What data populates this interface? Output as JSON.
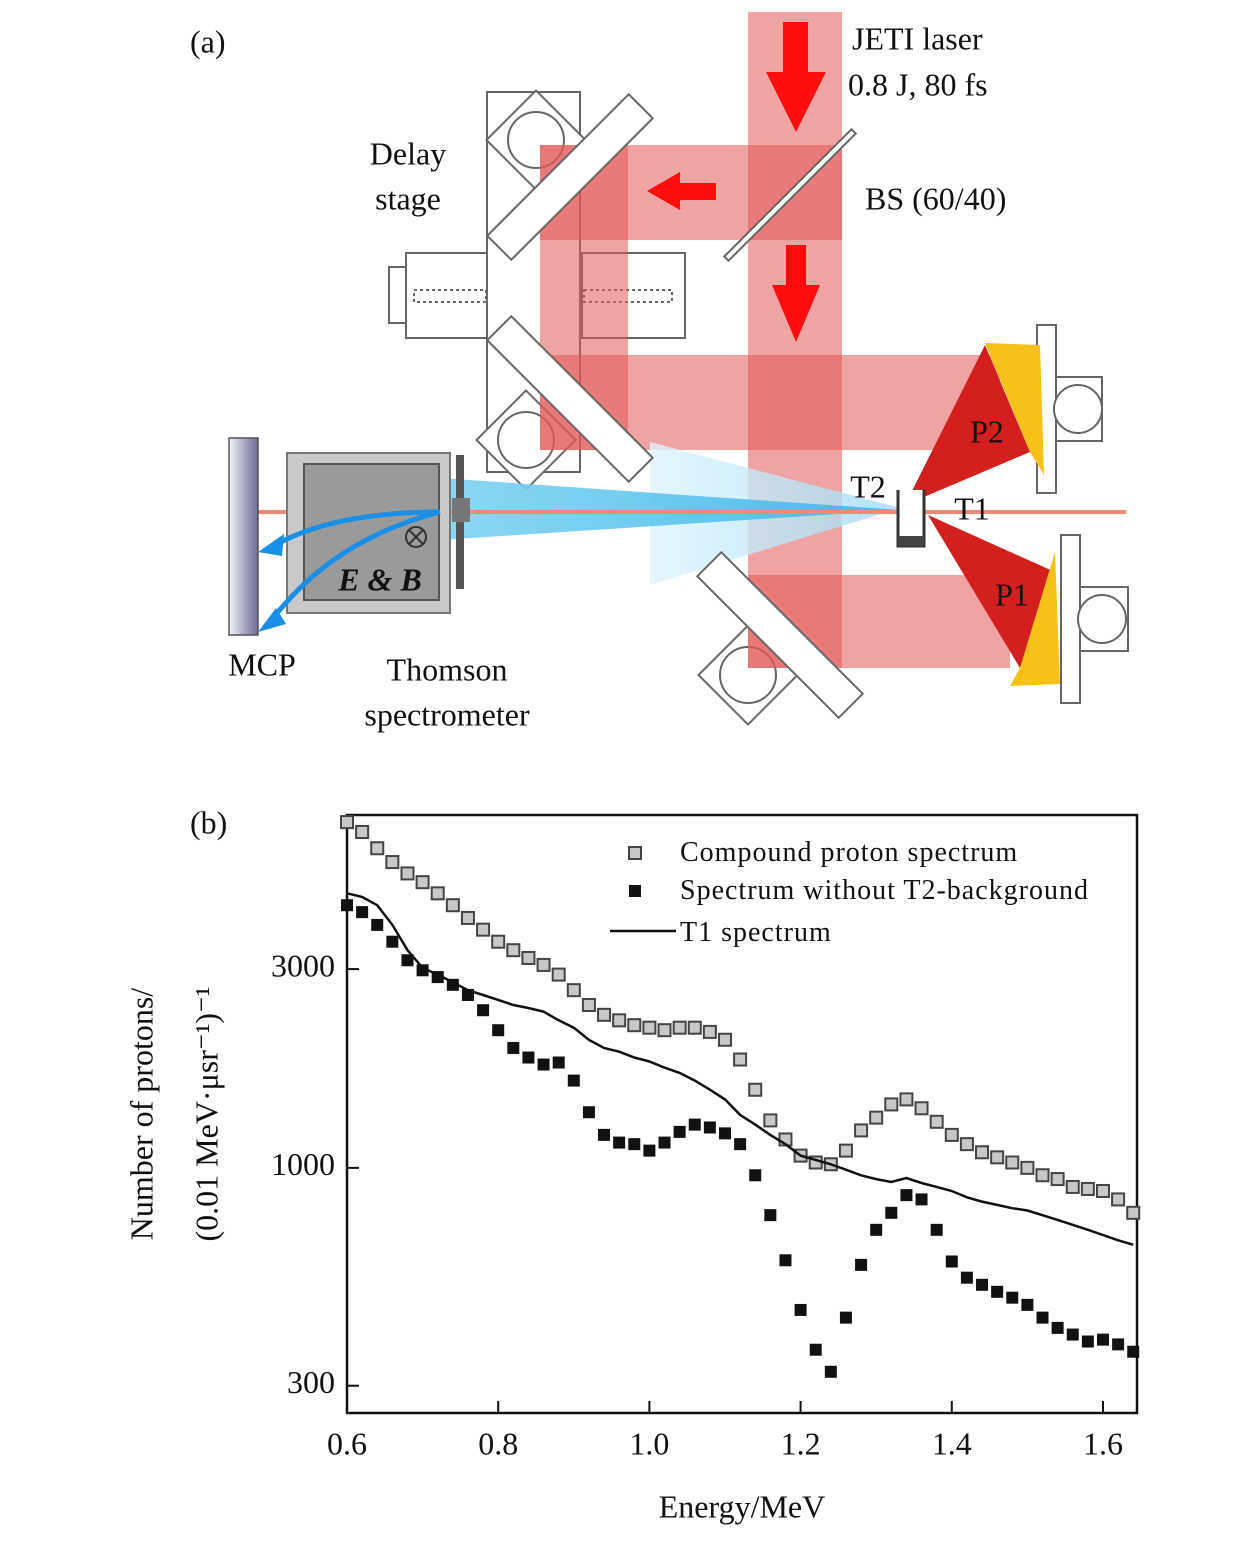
{
  "diagram": {
    "panel_label": "(a)",
    "labels": {
      "laser": "JETI laser",
      "laser_params": "0.8 J, 80 fs",
      "delay_1": "Delay",
      "delay_2": "stage",
      "beam_splitter": "BS (60/40)",
      "p2": "P2",
      "t2": "T2",
      "t1": "T1",
      "p1": "P1",
      "fields": "E & B",
      "mcp": "MCP",
      "thomson_1": "Thomson",
      "thomson_2": "spectrometer"
    }
  },
  "chart_data": {
    "type": "scatter",
    "panel_label": "(b)",
    "x_label": "Energy/MeV",
    "y_label": [
      "Number of protons/",
      "(0.01 MeV·μsr⁻¹)⁻¹"
    ],
    "xlim": [
      0.6,
      1.645
    ],
    "ylim": [
      258,
      7030
    ],
    "yscale": "log",
    "xticks": [
      0.6,
      0.8,
      {
        "value": 1,
        "label": "1.0"
      },
      1.2,
      1.4,
      1.6
    ],
    "yticks": [
      300,
      1000,
      3000
    ],
    "x": [
      0.6,
      0.62,
      0.64,
      0.66,
      0.68,
      0.7,
      0.72,
      0.74,
      0.76,
      0.78,
      0.8,
      0.82,
      0.84,
      0.86,
      0.88,
      0.9,
      0.92,
      0.94,
      0.96,
      0.98,
      1.0,
      1.02,
      1.04,
      1.06,
      1.08,
      1.1,
      1.12,
      1.14,
      1.16,
      1.18,
      1.2,
      1.22,
      1.24,
      1.26,
      1.28,
      1.3,
      1.32,
      1.34,
      1.36,
      1.38,
      1.4,
      1.42,
      1.44,
      1.46,
      1.48,
      1.5,
      1.52,
      1.54,
      1.56,
      1.58,
      1.6,
      1.62,
      1.64
    ],
    "series": [
      {
        "name": "Compound proton spectrum",
        "marker": "open-square",
        "color": "#c8c8c8",
        "values": [
          6760,
          6400,
          5850,
          5420,
          5090,
          4850,
          4560,
          4270,
          3980,
          3730,
          3490,
          3330,
          3190,
          3070,
          2910,
          2670,
          2460,
          2330,
          2260,
          2200,
          2170,
          2140,
          2170,
          2170,
          2120,
          2030,
          1820,
          1540,
          1300,
          1170,
          1070,
          1030,
          1020,
          1100,
          1230,
          1320,
          1420,
          1460,
          1390,
          1290,
          1200,
          1140,
          1090,
          1060,
          1030,
          1000,
          960,
          940,
          900,
          890,
          880,
          840,
          780
        ]
      },
      {
        "name": "Spectrum without T2-background",
        "marker": "filled-square",
        "color": "#111111",
        "values": [
          4270,
          4110,
          3830,
          3490,
          3150,
          2980,
          2870,
          2750,
          2600,
          2390,
          2140,
          1940,
          1840,
          1770,
          1790,
          1620,
          1360,
          1200,
          1150,
          1140,
          1100,
          1150,
          1220,
          1270,
          1250,
          1210,
          1140,
          960,
          770,
          600,
          456,
          366,
          324,
          437,
          585,
          710,
          780,
          860,
          840,
          710,
          596,
          545,
          524,
          504,
          488,
          469,
          437,
          413,
          398,
          383,
          387,
          377,
          362
        ]
      },
      {
        "name": "T1 spectrum",
        "marker": "line",
        "color": "#111111",
        "values": [
          4560,
          4470,
          4270,
          3830,
          3330,
          3020,
          2910,
          2790,
          2670,
          2600,
          2530,
          2460,
          2420,
          2370,
          2260,
          2170,
          2030,
          1940,
          1900,
          1840,
          1800,
          1740,
          1690,
          1620,
          1540,
          1460,
          1340,
          1270,
          1200,
          1140,
          1070,
          1045,
          1020,
          990,
          960,
          940,
          925,
          945,
          920,
          900,
          880,
          850,
          830,
          815,
          800,
          790,
          770,
          750,
          730,
          710,
          690,
          670,
          654
        ]
      }
    ]
  }
}
